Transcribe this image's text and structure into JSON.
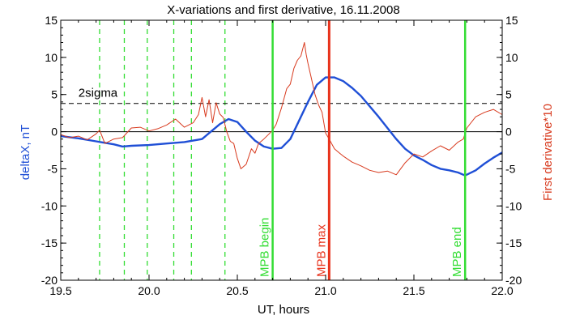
{
  "chart_data": {
    "type": "line",
    "title": "X-variations and first derivative, 16.11.2008",
    "xlabel": "UT, hours",
    "ylabel_left": "deltaX, nT",
    "ylabel_right": "First derivative*10",
    "xlim": [
      19.5,
      22.0
    ],
    "ylim": [
      -20,
      15
    ],
    "xticks": [
      19.5,
      20.0,
      20.5,
      21.0,
      21.5,
      22.0
    ],
    "xtick_labels": [
      "19.5",
      "20.0",
      "20.5",
      "21.0",
      "21.5",
      "22.0"
    ],
    "yticks": [
      -20,
      -15,
      -10,
      -5,
      0,
      5,
      10,
      15
    ],
    "ytick_labels": [
      "-20",
      "-15",
      "-10",
      "-5",
      "0",
      "5",
      "10",
      "15"
    ],
    "colors": {
      "deltaX": "#1f4fd6",
      "derivative": "#d83a1e",
      "mpb_green": "#33dd33",
      "mpb_red": "#e8321b",
      "reference": "#000000"
    },
    "reference_lines": [
      {
        "label": "2sigma",
        "y": 3.8,
        "style": "dashed"
      },
      {
        "label": "",
        "y": 0,
        "style": "solid"
      }
    ],
    "dashed_vertical_lines": [
      19.72,
      19.86,
      19.99,
      20.14,
      20.24,
      20.43
    ],
    "markers": [
      {
        "label": "MPB begin",
        "x": 20.7,
        "color": "green"
      },
      {
        "label": "MPB max",
        "x": 21.02,
        "color": "red"
      },
      {
        "label": "MPB end",
        "x": 21.79,
        "color": "green"
      }
    ],
    "series": [
      {
        "key": "deltaX",
        "axis": "left",
        "x": [
          19.5,
          19.6,
          19.7,
          19.8,
          19.85,
          19.9,
          20.0,
          20.1,
          20.2,
          20.3,
          20.35,
          20.4,
          20.45,
          20.5,
          20.55,
          20.6,
          20.65,
          20.7,
          20.75,
          20.8,
          20.85,
          20.9,
          20.95,
          21.0,
          21.05,
          21.1,
          21.15,
          21.2,
          21.3,
          21.4,
          21.45,
          21.5,
          21.55,
          21.6,
          21.65,
          21.7,
          21.75,
          21.79,
          21.85,
          21.9,
          21.95,
          22.0
        ],
        "values": [
          -0.6,
          -0.9,
          -1.3,
          -1.7,
          -2.0,
          -1.9,
          -1.8,
          -1.6,
          -1.4,
          -1.0,
          0.0,
          1.0,
          1.7,
          1.3,
          0.0,
          -1.2,
          -2.0,
          -2.3,
          -2.2,
          -1.0,
          1.5,
          4.0,
          6.3,
          7.3,
          7.3,
          6.8,
          5.9,
          4.8,
          2.0,
          -1.0,
          -2.3,
          -3.2,
          -3.8,
          -4.5,
          -5.0,
          -5.2,
          -5.5,
          -5.9,
          -5.2,
          -4.3,
          -3.5,
          -2.8
        ]
      },
      {
        "key": "derivative",
        "axis": "right",
        "x": [
          19.5,
          19.55,
          19.6,
          19.65,
          19.7,
          19.72,
          19.75,
          19.8,
          19.85,
          19.9,
          19.95,
          20.0,
          20.05,
          20.1,
          20.15,
          20.2,
          20.25,
          20.28,
          20.3,
          20.32,
          20.34,
          20.36,
          20.38,
          20.4,
          20.42,
          20.44,
          20.46,
          20.48,
          20.5,
          20.52,
          20.55,
          20.58,
          20.6,
          20.62,
          20.65,
          20.68,
          20.7,
          20.72,
          20.75,
          20.78,
          20.8,
          20.82,
          20.84,
          20.86,
          20.88,
          20.89,
          20.9,
          20.92,
          20.94,
          20.96,
          20.98,
          21.0,
          21.02,
          21.05,
          21.08,
          21.1,
          21.15,
          21.2,
          21.25,
          21.3,
          21.35,
          21.4,
          21.45,
          21.5,
          21.55,
          21.6,
          21.65,
          21.7,
          21.75,
          21.78,
          21.8,
          21.85,
          21.9,
          21.95,
          22.0
        ],
        "values": [
          -0.4,
          -0.8,
          -0.6,
          -1.1,
          -0.3,
          0.2,
          -1.6,
          -1.0,
          -0.8,
          0.5,
          0.6,
          0.1,
          0.4,
          0.9,
          1.7,
          0.6,
          1.2,
          2.3,
          4.6,
          2.0,
          4.3,
          1.2,
          3.9,
          2.4,
          1.9,
          0.0,
          -1.3,
          -1.6,
          -3.6,
          -5.0,
          -4.4,
          -2.3,
          -2.9,
          -1.6,
          -1.0,
          -0.3,
          0.2,
          1.0,
          3.2,
          5.8,
          6.4,
          8.5,
          9.6,
          10.2,
          12.0,
          10.4,
          9.2,
          7.1,
          5.0,
          3.6,
          2.6,
          -0.2,
          -1.0,
          -2.3,
          -2.9,
          -3.3,
          -4.1,
          -4.6,
          -5.2,
          -5.5,
          -5.3,
          -5.8,
          -4.2,
          -3.0,
          -3.4,
          -2.6,
          -1.9,
          -2.5,
          -1.4,
          -1.0,
          0.5,
          2.0,
          2.6,
          3.0,
          2.3
        ]
      }
    ]
  }
}
